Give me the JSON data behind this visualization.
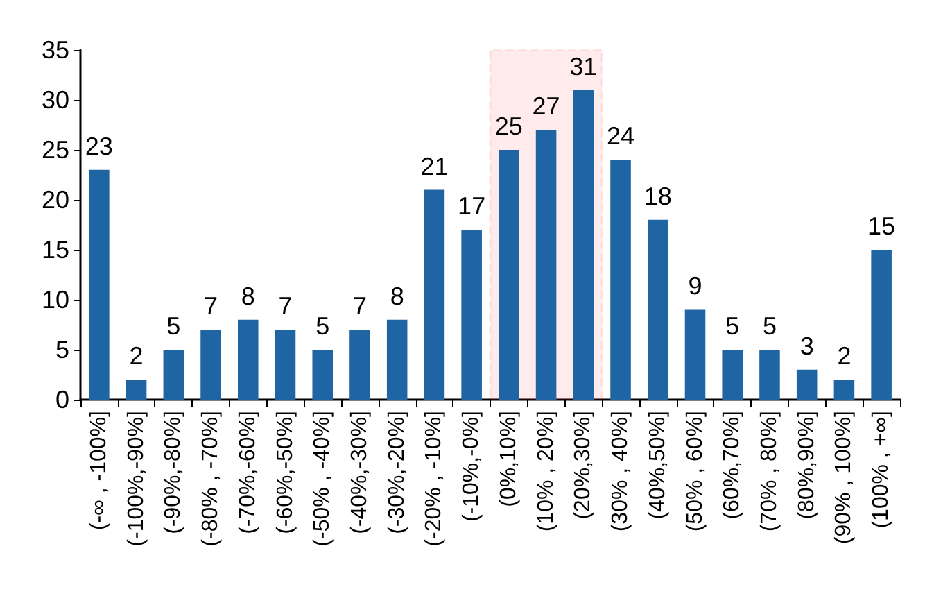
{
  "chart_data": {
    "type": "bar",
    "categories": [
      "(-∞ , -100%]",
      "(-100%,-90%]",
      "(-90%,-80%]",
      "(-80% , -70%]",
      "(-70%,-60%]",
      "(-60%,-50%]",
      "(-50% , -40%]",
      "(-40%,-30%]",
      "(-30%,-20%]",
      "(-20% , -10%]",
      "(-10%,-0%]",
      "(0%,10%]",
      "(10% , 20%]",
      "(20%,30%]",
      "(30% , 40%]",
      "(40%,50%]",
      "(50% , 60%]",
      "(60%,70%]",
      "(70% , 80%]",
      "(80%,90%]",
      "(90% , 100%]",
      "(100% , +∞]"
    ],
    "values": [
      23,
      2,
      5,
      7,
      8,
      7,
      5,
      7,
      8,
      21,
      17,
      25,
      27,
      31,
      24,
      18,
      9,
      5,
      5,
      3,
      2,
      15
    ],
    "color": "#1f64a3",
    "ylim": [
      0,
      35
    ],
    "yticks": [
      0,
      5,
      10,
      15,
      20,
      25,
      30,
      35
    ],
    "grid": false,
    "data_labels": true,
    "bands": [
      {
        "axis": "x",
        "from": "(0%,10%]",
        "to": "(20%,30%]",
        "color": "#ff0000"
      }
    ]
  }
}
